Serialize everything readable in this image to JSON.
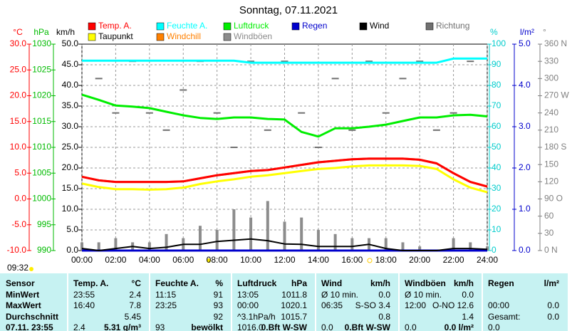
{
  "chart_data": {
    "type": "line",
    "title": "Sonntag, 07.11.2021",
    "x": [
      0,
      1,
      2,
      3,
      4,
      5,
      6,
      7,
      8,
      9,
      10,
      11,
      12,
      13,
      14,
      15,
      16,
      17,
      18,
      19,
      20,
      21,
      22,
      23,
      24
    ],
    "xlim": [
      0,
      24
    ],
    "xticks": [
      {
        "value": 0,
        "label": "00:00"
      },
      {
        "value": 2,
        "label": "02:00"
      },
      {
        "value": 4,
        "label": "04:00"
      },
      {
        "value": 6,
        "label": "06:00"
      },
      {
        "value": 8,
        "label": "08:00"
      },
      {
        "value": 10,
        "label": "10:00"
      },
      {
        "value": 12,
        "label": "12:00"
      },
      {
        "value": 14,
        "label": "14:00"
      },
      {
        "value": 16,
        "label": "16:00"
      },
      {
        "value": 18,
        "label": "18:00"
      },
      {
        "value": 20,
        "label": "20:00"
      },
      {
        "value": 22,
        "label": "22:00"
      },
      {
        "value": 24,
        "label": "24:00"
      }
    ],
    "grid": true,
    "axes": [
      {
        "label": "°C",
        "color": "#ff0000",
        "lim": [
          -10,
          30
        ],
        "ticks": [
          {
            "value": 30,
            "label": "30.0"
          },
          {
            "value": 25,
            "label": "25.0"
          },
          {
            "value": 20,
            "label": "20.0"
          },
          {
            "value": 15,
            "label": "15.0"
          },
          {
            "value": 10,
            "label": "10.0"
          },
          {
            "value": 5,
            "label": "5.0"
          },
          {
            "value": 0,
            "label": "0.0"
          },
          {
            "value": -5,
            "label": "-5.0"
          },
          {
            "value": -10,
            "label": "-10.0"
          }
        ]
      },
      {
        "label": "hPa",
        "color": "#00bb00",
        "lim": [
          990,
          1030
        ],
        "ticks": [
          1030,
          1025,
          1020,
          1015,
          1010,
          1005,
          1000,
          995,
          990
        ]
      },
      {
        "label": "km/h",
        "color": "#000000",
        "lim": [
          0,
          50
        ],
        "ticks": [
          {
            "value": 50,
            "label": "50.0"
          },
          {
            "value": 45,
            "label": "45.0"
          },
          {
            "value": 40,
            "label": "40.0"
          },
          {
            "value": 35,
            "label": "35.0"
          },
          {
            "value": 30,
            "label": "30.0"
          },
          {
            "value": 25,
            "label": "25.0"
          },
          {
            "value": 20,
            "label": "20.0"
          },
          {
            "value": 15,
            "label": "15.0"
          },
          {
            "value": 10,
            "label": "10.0"
          },
          {
            "value": 5,
            "label": "5.0"
          },
          {
            "value": 0,
            "label": "0.0"
          }
        ]
      },
      {
        "label": "%",
        "color": "#00cccc",
        "lim": [
          0,
          100
        ],
        "ticks": [
          100,
          90,
          80,
          70,
          60,
          50,
          40,
          30,
          20,
          10,
          0
        ]
      },
      {
        "label": "l/m²",
        "color": "#0000cc",
        "lim": [
          0,
          5
        ],
        "ticks": [
          {
            "value": 5,
            "label": "5.0"
          },
          {
            "value": 4,
            "label": "4.0"
          },
          {
            "value": 3,
            "label": "3.0"
          },
          {
            "value": 2,
            "label": "2.0"
          },
          {
            "value": 1,
            "label": "1.0"
          },
          {
            "value": 0,
            "label": "0.0"
          }
        ]
      },
      {
        "label": "°",
        "color": "#808080",
        "lim": [
          0,
          360
        ],
        "ticks": [
          {
            "value": 360,
            "label": "360 N"
          },
          330,
          300,
          {
            "value": 270,
            "label": "270 W"
          },
          240,
          210,
          {
            "value": 180,
            "label": "180 S"
          },
          150,
          120,
          {
            "value": 90,
            "label": "90 O"
          },
          60,
          30,
          {
            "value": 0,
            "label": "0 N"
          }
        ]
      }
    ],
    "series": [
      {
        "name": "Windböen",
        "color": "#8c8c8c",
        "axis": 2,
        "style": "bar",
        "values": [
          2,
          2,
          3,
          2,
          2,
          4,
          3,
          6,
          5,
          10,
          8,
          12,
          7,
          8,
          5,
          4,
          3,
          3,
          3,
          2,
          1,
          0,
          3,
          2,
          1
        ]
      },
      {
        "name": "Richtung",
        "color": "#707070",
        "axis": 5,
        "style": "dash",
        "values": [
          null,
          300,
          240,
          330,
          240,
          210,
          280,
          330,
          240,
          180,
          330,
          210,
          330,
          240,
          180,
          300,
          210,
          330,
          240,
          300,
          330,
          210,
          240,
          330,
          null
        ]
      },
      {
        "name": "Regen",
        "color": "#0000cc",
        "axis": 4,
        "style": "line",
        "values": [
          0,
          0,
          0,
          0,
          0,
          0,
          0,
          0,
          0,
          0,
          0,
          0,
          0,
          0,
          0,
          0,
          0,
          0,
          0,
          0,
          0,
          0,
          0,
          0,
          0
        ]
      },
      {
        "name": "Wind",
        "color": "#000000",
        "axis": 2,
        "style": "line",
        "values": [
          0.5,
          0,
          0.5,
          1,
          0.5,
          0.8,
          1.5,
          1.5,
          2.2,
          2.5,
          2.8,
          2.4,
          1.6,
          1.5,
          1,
          1,
          1,
          1.5,
          0.5,
          0,
          0,
          0,
          0.5,
          0.5,
          0.3
        ]
      },
      {
        "name": "Feuchte A.",
        "color": "#00ffff",
        "axis": 3,
        "style": "line",
        "values": [
          92,
          92,
          92,
          92,
          92,
          92,
          92,
          92,
          92,
          92,
          91,
          91,
          91,
          91,
          91,
          91,
          91,
          91,
          91,
          91,
          91,
          91,
          93,
          93,
          93
        ]
      },
      {
        "name": "Luftdruck",
        "color": "#00ee00",
        "axis": 1,
        "style": "line",
        "values": [
          1020.2,
          1019.2,
          1018.1,
          1017.9,
          1017.6,
          1016.9,
          1016.2,
          1015.7,
          1015.5,
          1015.8,
          1015.8,
          1015.5,
          1015.4,
          1013,
          1012.1,
          1013.7,
          1013.7,
          1014,
          1014.4,
          1015.1,
          1015.8,
          1015.8,
          1016.2,
          1016.3,
          1016
        ]
      },
      {
        "name": "Windchill",
        "color": "#ff8000",
        "axis": 0,
        "style": "line",
        "values": [
          4.3,
          3.6,
          3.3,
          3.3,
          3.3,
          3.3,
          3.4,
          4.0,
          4.6,
          5.0,
          5.4,
          5.6,
          6.1,
          6.6,
          7.1,
          7.4,
          7.7,
          7.8,
          7.8,
          7.8,
          7.6,
          6.9,
          5.0,
          3.3,
          2.4
        ]
      },
      {
        "name": "Taupunkt",
        "color": "#ffff00",
        "axis": 0,
        "style": "line",
        "values": [
          3.0,
          2.3,
          1.9,
          1.9,
          1.8,
          1.9,
          2.2,
          2.9,
          3.4,
          3.8,
          4.3,
          4.6,
          5.0,
          5.4,
          5.8,
          6.0,
          6.3,
          6.5,
          6.5,
          6.5,
          6.4,
          5.8,
          3.8,
          2.2,
          1.3
        ]
      },
      {
        "name": "Temp. A.",
        "color": "#ff0000",
        "axis": 0,
        "style": "line",
        "values": [
          4.3,
          3.6,
          3.3,
          3.3,
          3.3,
          3.3,
          3.4,
          4.0,
          4.6,
          5.0,
          5.4,
          5.6,
          6.1,
          6.6,
          7.1,
          7.4,
          7.7,
          7.8,
          7.8,
          7.8,
          7.6,
          6.9,
          5.0,
          3.3,
          2.4
        ]
      }
    ],
    "footer_time": "09:32"
  },
  "table": {
    "rows": [
      [
        "Sensor",
        "Temp. A.",
        "°C",
        "Feuchte A.",
        "%",
        "Luftdruck",
        "hPa",
        "Wind",
        "km/h",
        "Windböen",
        "km/h",
        "Regen",
        "l/m²"
      ],
      [
        "MinWert",
        "23:55",
        "2.4",
        "11:15",
        "91",
        "13:05",
        "1011.8",
        "Ø 10 min.",
        "0.0",
        "Ø 10 min.",
        "0.0",
        null,
        null
      ],
      [
        "MaxWert",
        "16:40",
        "7.8",
        "23:25",
        "93",
        "00:00",
        "1020.1",
        "06:35",
        "S-SO 3.4",
        "12:00",
        "O-NO 12.6",
        "00:00",
        "0.0"
      ],
      [
        "Durchschnitt",
        null,
        "5.45",
        null,
        "92",
        "^3.1hPa/h",
        "1015.7",
        null,
        "0.8",
        null,
        "1.4",
        "Gesamt:",
        "0.0"
      ],
      [
        "07.11. 23:55",
        "2.4",
        "5.31 g/m³",
        "93",
        "bewölkt",
        "1016.0",
        "0.Bft W-SW",
        "0.0",
        "0.Bft W-SW",
        "0.0",
        "0.0 l/m²",
        "0.0",
        null
      ]
    ]
  }
}
